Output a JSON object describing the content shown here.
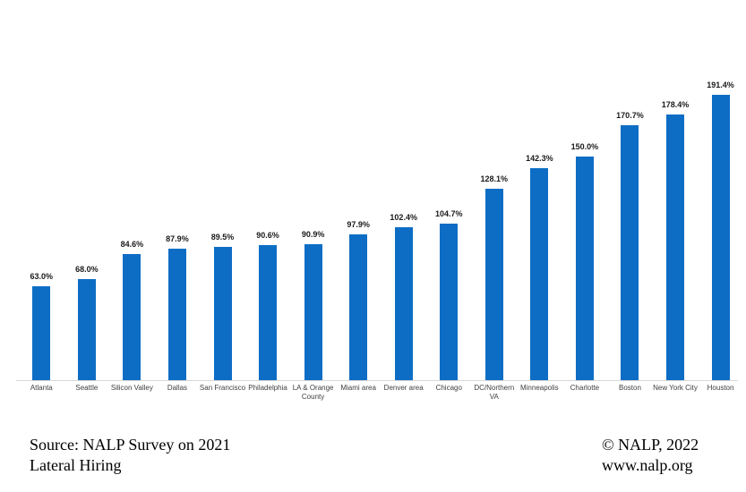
{
  "chart_data": {
    "type": "bar",
    "title": "",
    "xlabel": "",
    "ylabel": "",
    "categories": [
      "Atlanta",
      "Seattle",
      "Silicon Valley",
      "Dallas",
      "San Francisco",
      "Philadelphia",
      "LA & Orange County",
      "Miami area",
      "Denver area",
      "Chicago",
      "DC/Northern VA",
      "Minneapolis",
      "Charlotte",
      "Boston",
      "New York City",
      "Houston"
    ],
    "values": [
      63.0,
      68.0,
      84.6,
      87.9,
      89.5,
      90.6,
      90.9,
      97.9,
      102.4,
      104.7,
      128.1,
      142.3,
      150.0,
      170.7,
      178.4,
      191.4
    ],
    "value_labels": [
      "63.0%",
      "68.0%",
      "84.6%",
      "87.9%",
      "89.5%",
      "90.6%",
      "90.9%",
      "97.9%",
      "102.4%",
      "104.7%",
      "128.1%",
      "142.3%",
      "150.0%",
      "170.7%",
      "178.4%",
      "191.4%"
    ],
    "ylim": [
      0,
      200
    ],
    "grid": false,
    "legend": false,
    "bar_color": "#0d6dc5",
    "axis_line_color": "#d9d9d9"
  },
  "footer": {
    "source_line1": "Source: NALP Survey on 2021",
    "source_line2": "Lateral Hiring",
    "credit_line1": "© NALP, 2022",
    "credit_line2": "www.nalp.org"
  }
}
